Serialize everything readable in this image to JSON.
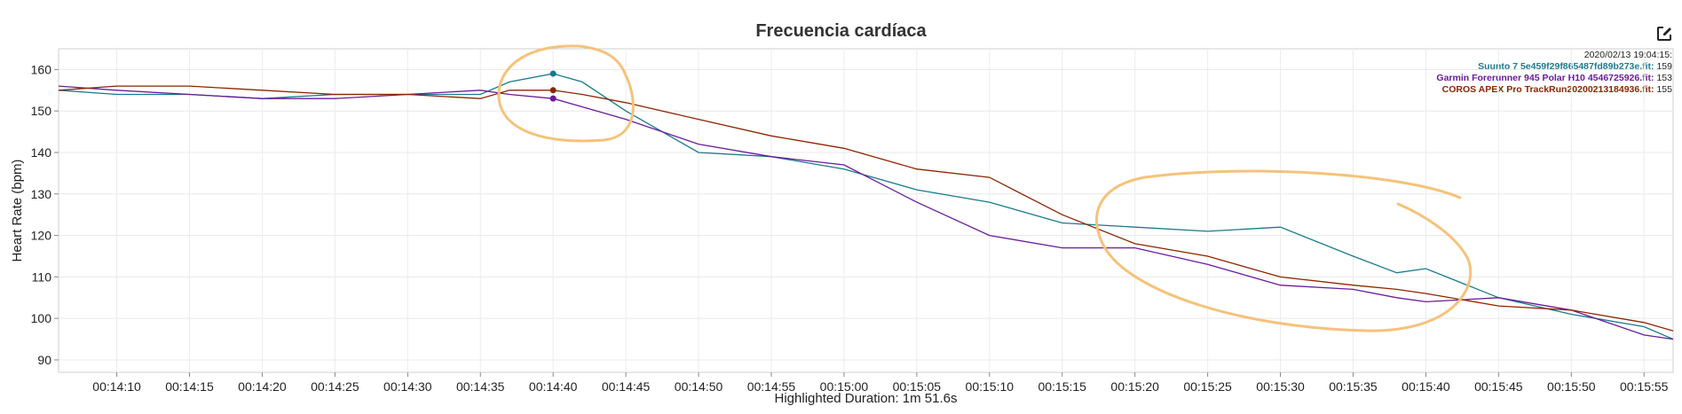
{
  "chart_title": "Frecuencia cardíaca",
  "edit_icon": "edit-icon",
  "legend": {
    "timestamp": "2020/02/13 19:04:15:",
    "entries": [
      {
        "name": "Suunto 7 5e459f29f865487fd89b273e.fit:",
        "value": "159",
        "color": "#1a7a8c"
      },
      {
        "name": "Garmin Forerunner 945 Polar H10 4546725926.fit:",
        "value": "153",
        "color": "#6a1b9a"
      },
      {
        "name": "COROS APEX Pro TrackRun20200213184936.fit:",
        "value": "155",
        "color": "#8b2500"
      }
    ]
  },
  "chart_data": {
    "type": "line",
    "title": "Frecuencia cardíaca",
    "xlabel": "Highlighted Duration: 1m 51.6s",
    "ylabel": "Heart Rate (bpm)",
    "x_unit": "elapsed time",
    "xlim": [
      "00:14:06",
      "00:15:57"
    ],
    "ylim": [
      87,
      165
    ],
    "y_ticks": [
      90,
      100,
      110,
      120,
      130,
      140,
      150,
      160
    ],
    "x_ticks": [
      "00:14:10",
      "00:14:15",
      "00:14:20",
      "00:14:25",
      "00:14:30",
      "00:14:35",
      "00:14:40",
      "00:14:45",
      "00:14:50",
      "00:14:55",
      "00:15:00",
      "00:15:05",
      "00:15:10",
      "00:15:15",
      "00:15:20",
      "00:15:25",
      "00:15:30",
      "00:15:35",
      "00:15:40",
      "00:15:45",
      "00:15:50",
      "00:15:55"
    ],
    "grid": true,
    "legend_position": "top-right",
    "x": [
      "00:14:06",
      "00:14:10",
      "00:14:15",
      "00:14:20",
      "00:14:25",
      "00:14:30",
      "00:14:35",
      "00:14:37",
      "00:14:40",
      "00:14:42",
      "00:14:45",
      "00:14:50",
      "00:14:55",
      "00:15:00",
      "00:15:05",
      "00:15:10",
      "00:15:15",
      "00:15:20",
      "00:15:25",
      "00:15:30",
      "00:15:35",
      "00:15:38",
      "00:15:40",
      "00:15:45",
      "00:15:50",
      "00:15:55",
      "00:15:57"
    ],
    "highlight_x": "00:14:40",
    "series": [
      {
        "name": "Suunto 7 5e459f29f865487fd89b273e.fit",
        "color": "#1a7a8c",
        "values": [
          155,
          154,
          154,
          153,
          154,
          154,
          154,
          157,
          159,
          157,
          150,
          140,
          139,
          136,
          131,
          128,
          123,
          122,
          121,
          122,
          115,
          111,
          112,
          105,
          101,
          98,
          95
        ]
      },
      {
        "name": "Garmin Forerunner 945 Polar H10 4546725926.fit",
        "color": "#6a1b9a",
        "values": [
          156,
          155,
          154,
          153,
          153,
          154,
          155,
          154,
          153,
          151,
          148,
          142,
          139,
          137,
          128,
          120,
          117,
          117,
          113,
          108,
          107,
          105,
          104,
          105,
          102,
          96,
          95
        ]
      },
      {
        "name": "COROS APEX Pro TrackRun20200213184936.fit",
        "color": "#8b2500",
        "values": [
          155,
          156,
          156,
          155,
          154,
          154,
          153,
          155,
          155,
          154,
          152,
          148,
          144,
          141,
          136,
          134,
          125,
          118,
          115,
          110,
          108,
          107,
          106,
          103,
          102,
          99,
          97
        ]
      }
    ]
  }
}
